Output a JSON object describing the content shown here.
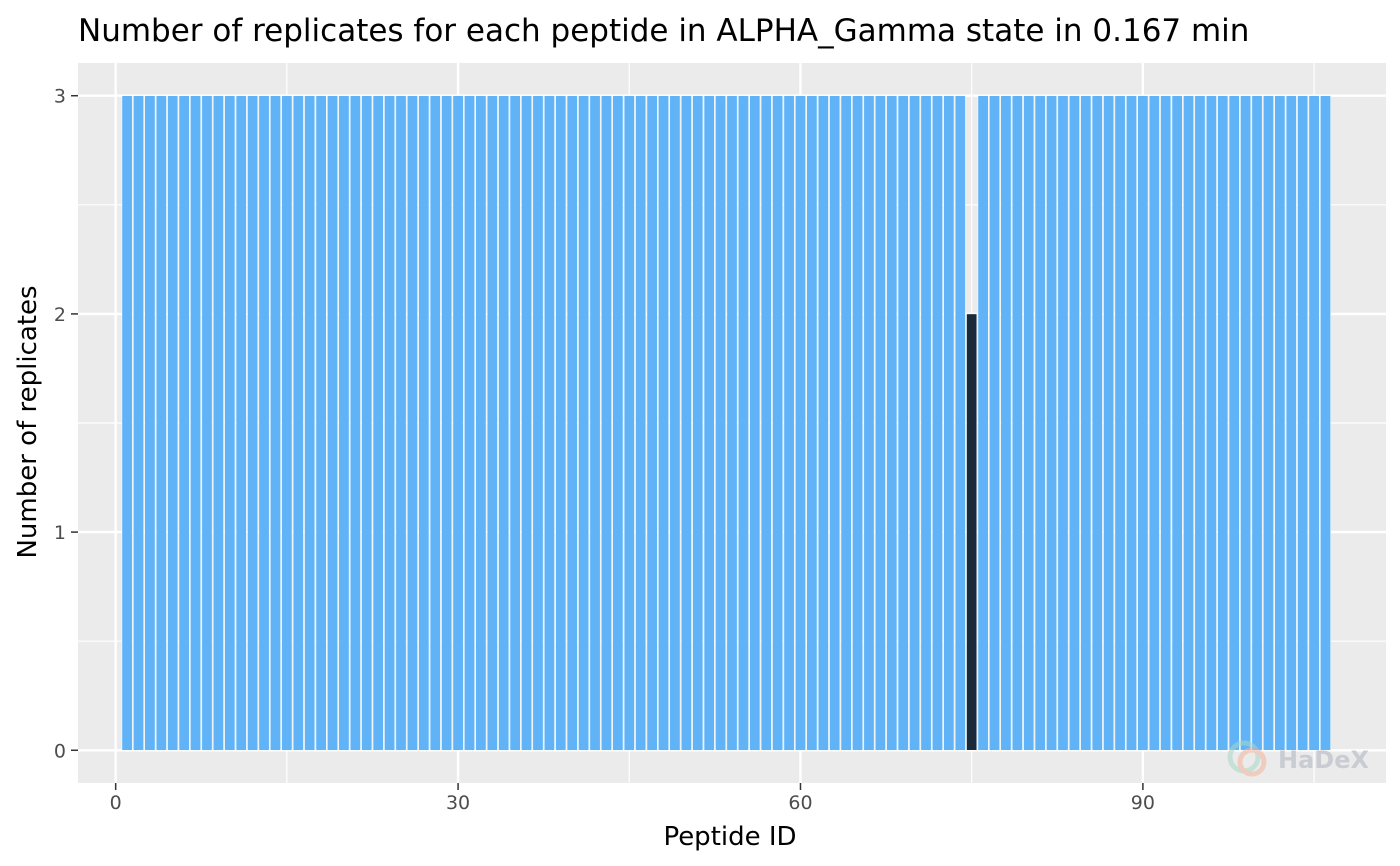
{
  "chart_data": {
    "type": "bar",
    "title": "Number of replicates for each peptide in ALPHA_Gamma state in 0.167 min",
    "xlabel": "Peptide ID",
    "ylabel": "Number of replicates",
    "x_range": [
      1,
      106
    ],
    "x_ticks": [
      0,
      30,
      60,
      90
    ],
    "y_ticks": [
      0,
      1,
      2,
      3
    ],
    "ylim": [
      -0.15,
      3.15
    ],
    "xlim": [
      -3.3,
      111.3
    ],
    "grid": true,
    "background": "#ebebeb",
    "default_value": 3,
    "values": [
      3,
      3,
      3,
      3,
      3,
      3,
      3,
      3,
      3,
      3,
      3,
      3,
      3,
      3,
      3,
      3,
      3,
      3,
      3,
      3,
      3,
      3,
      3,
      3,
      3,
      3,
      3,
      3,
      3,
      3,
      3,
      3,
      3,
      3,
      3,
      3,
      3,
      3,
      3,
      3,
      3,
      3,
      3,
      3,
      3,
      3,
      3,
      3,
      3,
      3,
      3,
      3,
      3,
      3,
      3,
      3,
      3,
      3,
      3,
      3,
      3,
      3,
      3,
      3,
      3,
      3,
      3,
      3,
      3,
      3,
      3,
      3,
      3,
      3,
      2,
      3,
      3,
      3,
      3,
      3,
      3,
      3,
      3,
      3,
      3,
      3,
      3,
      3,
      3,
      3,
      3,
      3,
      3,
      3,
      3,
      3,
      3,
      3,
      3,
      3,
      3,
      3,
      3,
      3,
      3,
      3
    ],
    "colors": {
      "full": "#5fb3f6",
      "partial": "#1b2a3b"
    }
  },
  "watermark": {
    "text": "HaDeX"
  }
}
